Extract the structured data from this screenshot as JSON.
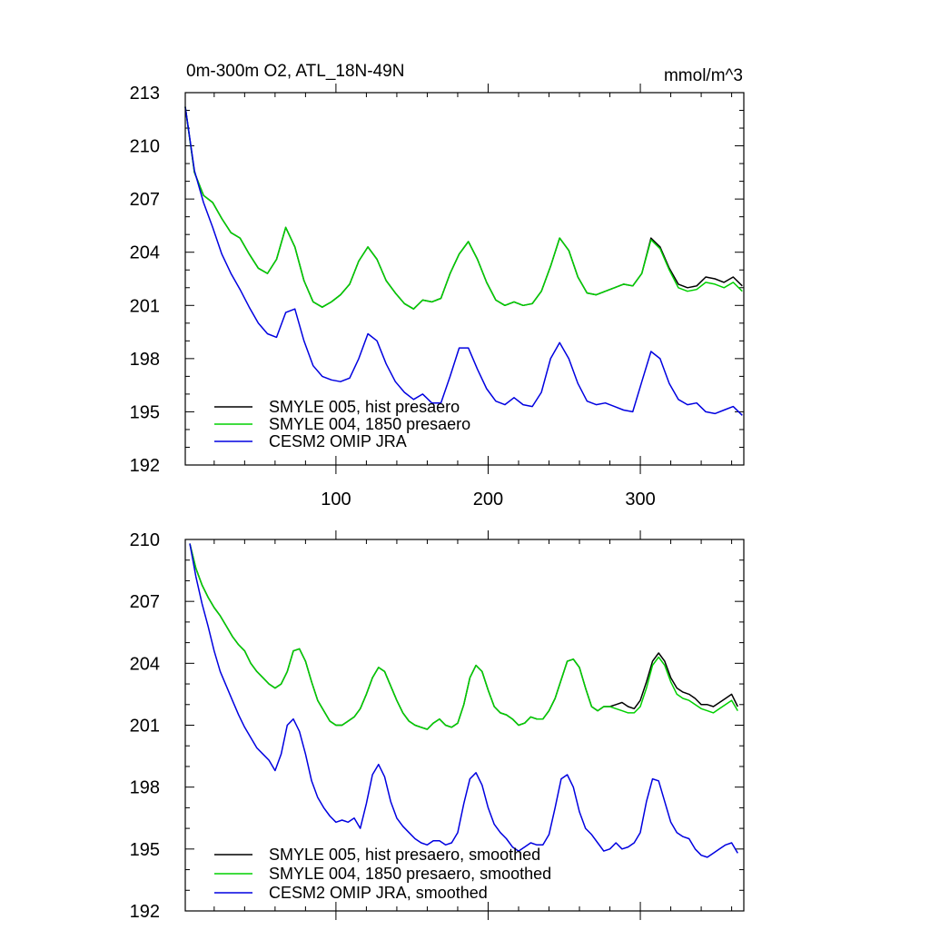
{
  "chart_data": [
    {
      "type": "line",
      "title": "0m-300m O2, ATL_18N-49N",
      "units": "mmol/m^3",
      "x_range": [
        1,
        368
      ],
      "ylim": [
        192,
        213
      ],
      "y_ticks": [
        192,
        195,
        198,
        201,
        204,
        207,
        210,
        213
      ],
      "x_ticks": [
        100,
        200,
        300
      ],
      "x_tick_labels": [
        "100",
        "200",
        "300"
      ],
      "x_tick_labels_position": "bottom",
      "legend_position": "bottom-left",
      "series": [
        {
          "name": "SMYLE 005, hist presaero",
          "color": "#000000",
          "x": [
            1,
            7,
            13,
            19,
            25,
            31,
            37,
            43,
            49,
            55,
            61,
            67,
            73,
            79,
            85,
            91,
            97,
            103,
            109,
            115,
            121,
            127,
            133,
            139,
            145,
            151,
            157,
            163,
            169,
            175,
            181,
            187,
            193,
            199,
            205,
            211,
            217,
            223,
            229,
            235,
            241,
            247,
            253,
            259,
            265,
            271,
            277,
            283,
            289,
            295,
            301,
            307,
            313,
            319,
            325,
            331,
            337,
            343,
            349,
            355,
            361,
            367
          ],
          "values": [
            212.2,
            208.5,
            207.2,
            206.8,
            205.9,
            205.1,
            204.8,
            203.9,
            203.1,
            202.8,
            203.6,
            205.4,
            204.3,
            202.4,
            201.2,
            200.9,
            201.2,
            201.6,
            202.2,
            203.5,
            204.3,
            203.6,
            202.4,
            201.7,
            201.1,
            200.8,
            201.3,
            201.2,
            201.4,
            202.8,
            203.9,
            204.6,
            203.6,
            202.3,
            201.3,
            201.0,
            201.2,
            201.0,
            201.1,
            201.8,
            203.2,
            204.8,
            204.1,
            202.6,
            201.7,
            201.6,
            201.8,
            202.0,
            202.2,
            202.1,
            202.8,
            204.8,
            204.3,
            203.1,
            202.2,
            202.0,
            202.1,
            202.6,
            202.5,
            202.3,
            202.6,
            202.1
          ]
        },
        {
          "name": "SMYLE 004, 1850 presaero",
          "color": "#00d000",
          "x": [
            1,
            7,
            13,
            19,
            25,
            31,
            37,
            43,
            49,
            55,
            61,
            67,
            73,
            79,
            85,
            91,
            97,
            103,
            109,
            115,
            121,
            127,
            133,
            139,
            145,
            151,
            157,
            163,
            169,
            175,
            181,
            187,
            193,
            199,
            205,
            211,
            217,
            223,
            229,
            235,
            241,
            247,
            253,
            259,
            265,
            271,
            277,
            283,
            289,
            295,
            301,
            307,
            313,
            319,
            325,
            331,
            337,
            343,
            349,
            355,
            361,
            367
          ],
          "values": [
            212.2,
            208.5,
            207.2,
            206.8,
            205.9,
            205.1,
            204.8,
            203.9,
            203.1,
            202.8,
            203.6,
            205.4,
            204.3,
            202.4,
            201.2,
            200.9,
            201.2,
            201.6,
            202.2,
            203.5,
            204.3,
            203.6,
            202.4,
            201.7,
            201.1,
            200.8,
            201.3,
            201.2,
            201.4,
            202.8,
            203.9,
            204.6,
            203.6,
            202.3,
            201.3,
            201.0,
            201.2,
            201.0,
            201.1,
            201.8,
            203.2,
            204.8,
            204.1,
            202.6,
            201.7,
            201.6,
            201.8,
            202.0,
            202.2,
            202.1,
            202.8,
            204.7,
            204.2,
            203.0,
            202.0,
            201.8,
            201.9,
            202.3,
            202.2,
            202.0,
            202.3,
            201.8
          ]
        },
        {
          "name": "CESM2 OMIP JRA",
          "color": "#0000e0",
          "x": [
            1,
            7,
            13,
            19,
            25,
            31,
            37,
            43,
            49,
            55,
            61,
            67,
            73,
            79,
            85,
            91,
            97,
            103,
            109,
            115,
            121,
            127,
            133,
            139,
            145,
            151,
            157,
            163,
            169,
            175,
            181,
            187,
            193,
            199,
            205,
            211,
            217,
            223,
            229,
            235,
            241,
            247,
            253,
            259,
            265,
            271,
            277,
            283,
            289,
            295,
            301,
            307,
            313,
            319,
            325,
            331,
            337,
            343,
            349,
            355,
            361,
            367
          ],
          "values": [
            212.2,
            208.6,
            206.8,
            205.4,
            203.9,
            202.8,
            201.9,
            200.9,
            200.0,
            199.4,
            199.2,
            200.6,
            200.8,
            199.0,
            197.6,
            197.0,
            196.8,
            196.7,
            196.9,
            198.0,
            199.4,
            199.0,
            197.7,
            196.7,
            196.1,
            195.7,
            196.0,
            195.5,
            195.5,
            197.0,
            198.6,
            198.6,
            197.4,
            196.3,
            195.6,
            195.4,
            195.8,
            195.4,
            195.3,
            196.1,
            198.0,
            198.9,
            198.0,
            196.6,
            195.6,
            195.4,
            195.5,
            195.3,
            195.1,
            195.0,
            196.7,
            198.4,
            198.0,
            196.6,
            195.7,
            195.4,
            195.5,
            195.0,
            194.9,
            195.1,
            195.3,
            194.8
          ]
        }
      ]
    },
    {
      "type": "line",
      "title": "",
      "units": "",
      "x_range": [
        1,
        368
      ],
      "ylim": [
        192,
        210
      ],
      "y_ticks": [
        192,
        195,
        198,
        201,
        204,
        207,
        210
      ],
      "x_ticks": [
        100,
        200,
        300
      ],
      "x_tick_labels": [],
      "legend_position": "bottom-left",
      "series": [
        {
          "name": "SMYLE 005, hist presaero, smoothed",
          "color": "#000000",
          "x": [
            4,
            8,
            12,
            16,
            20,
            24,
            28,
            32,
            36,
            40,
            44,
            48,
            52,
            56,
            60,
            64,
            68,
            72,
            76,
            80,
            84,
            88,
            92,
            96,
            100,
            104,
            108,
            112,
            116,
            120,
            124,
            128,
            132,
            136,
            140,
            144,
            148,
            152,
            156,
            160,
            164,
            168,
            172,
            176,
            180,
            184,
            188,
            192,
            196,
            200,
            204,
            208,
            212,
            216,
            220,
            224,
            228,
            232,
            236,
            240,
            244,
            248,
            252,
            256,
            260,
            264,
            268,
            272,
            276,
            280,
            284,
            288,
            292,
            296,
            300,
            304,
            308,
            312,
            316,
            320,
            324,
            328,
            332,
            336,
            340,
            344,
            348,
            352,
            356,
            360,
            364
          ],
          "values": [
            209.8,
            208.6,
            207.8,
            207.2,
            206.7,
            206.3,
            205.8,
            205.3,
            204.9,
            204.6,
            204.0,
            203.6,
            203.3,
            203.0,
            202.8,
            203.0,
            203.6,
            204.6,
            204.7,
            204.1,
            203.1,
            202.2,
            201.7,
            201.2,
            201.0,
            201.0,
            201.2,
            201.4,
            201.8,
            202.5,
            203.3,
            203.8,
            203.6,
            202.9,
            202.2,
            201.6,
            201.2,
            201.0,
            200.9,
            200.8,
            201.1,
            201.3,
            201.0,
            200.9,
            201.1,
            202.0,
            203.3,
            203.9,
            203.6,
            202.7,
            201.9,
            201.6,
            201.5,
            201.3,
            201.0,
            201.1,
            201.4,
            201.3,
            201.3,
            201.7,
            202.3,
            203.2,
            204.1,
            204.2,
            203.8,
            202.8,
            201.9,
            201.7,
            201.9,
            201.9,
            202.0,
            202.1,
            201.9,
            201.8,
            202.2,
            203.1,
            204.1,
            204.5,
            204.1,
            203.3,
            202.8,
            202.6,
            202.5,
            202.3,
            202.0,
            202.0,
            201.9,
            202.1,
            202.3,
            202.5,
            201.9
          ]
        },
        {
          "name": "SMYLE 004, 1850 presaero, smoothed",
          "color": "#00d000",
          "x": [
            4,
            8,
            12,
            16,
            20,
            24,
            28,
            32,
            36,
            40,
            44,
            48,
            52,
            56,
            60,
            64,
            68,
            72,
            76,
            80,
            84,
            88,
            92,
            96,
            100,
            104,
            108,
            112,
            116,
            120,
            124,
            128,
            132,
            136,
            140,
            144,
            148,
            152,
            156,
            160,
            164,
            168,
            172,
            176,
            180,
            184,
            188,
            192,
            196,
            200,
            204,
            208,
            212,
            216,
            220,
            224,
            228,
            232,
            236,
            240,
            244,
            248,
            252,
            256,
            260,
            264,
            268,
            272,
            276,
            280,
            284,
            288,
            292,
            296,
            300,
            304,
            308,
            312,
            316,
            320,
            324,
            328,
            332,
            336,
            340,
            344,
            348,
            352,
            356,
            360,
            364
          ],
          "values": [
            209.8,
            208.6,
            207.8,
            207.2,
            206.7,
            206.3,
            205.8,
            205.3,
            204.9,
            204.6,
            204.0,
            203.6,
            203.3,
            203.0,
            202.8,
            203.0,
            203.6,
            204.6,
            204.7,
            204.1,
            203.1,
            202.2,
            201.7,
            201.2,
            201.0,
            201.0,
            201.2,
            201.4,
            201.8,
            202.5,
            203.3,
            203.8,
            203.6,
            202.9,
            202.2,
            201.6,
            201.2,
            201.0,
            200.9,
            200.8,
            201.1,
            201.3,
            201.0,
            200.9,
            201.1,
            202.0,
            203.3,
            203.9,
            203.6,
            202.7,
            201.9,
            201.6,
            201.5,
            201.3,
            201.0,
            201.1,
            201.4,
            201.3,
            201.3,
            201.7,
            202.3,
            203.2,
            204.1,
            204.2,
            203.8,
            202.8,
            201.9,
            201.7,
            201.9,
            201.9,
            201.8,
            201.7,
            201.6,
            201.6,
            201.9,
            202.8,
            203.9,
            204.3,
            203.9,
            203.1,
            202.5,
            202.3,
            202.2,
            202.0,
            201.8,
            201.7,
            201.6,
            201.8,
            202.0,
            202.2,
            201.7
          ]
        },
        {
          "name": "CESM2 OMIP JRA, smoothed",
          "color": "#0000e0",
          "x": [
            4,
            8,
            12,
            16,
            20,
            24,
            28,
            32,
            36,
            40,
            44,
            48,
            52,
            56,
            60,
            64,
            68,
            72,
            76,
            80,
            84,
            88,
            92,
            96,
            100,
            104,
            108,
            112,
            116,
            120,
            124,
            128,
            132,
            136,
            140,
            144,
            148,
            152,
            156,
            160,
            164,
            168,
            172,
            176,
            180,
            184,
            188,
            192,
            196,
            200,
            204,
            208,
            212,
            216,
            220,
            224,
            228,
            232,
            236,
            240,
            244,
            248,
            252,
            256,
            260,
            264,
            268,
            272,
            276,
            280,
            284,
            288,
            292,
            296,
            300,
            304,
            308,
            312,
            316,
            320,
            324,
            328,
            332,
            336,
            340,
            344,
            348,
            352,
            356,
            360,
            364
          ],
          "values": [
            209.8,
            208.2,
            206.9,
            205.8,
            204.6,
            203.6,
            202.9,
            202.2,
            201.5,
            200.9,
            200.4,
            199.9,
            199.6,
            199.3,
            198.8,
            199.6,
            201.0,
            201.3,
            200.7,
            199.6,
            198.3,
            197.5,
            197.0,
            196.6,
            196.3,
            196.4,
            196.3,
            196.5,
            196.0,
            197.2,
            198.6,
            199.1,
            198.5,
            197.3,
            196.5,
            196.1,
            195.8,
            195.5,
            195.3,
            195.2,
            195.4,
            195.4,
            195.2,
            195.3,
            195.8,
            197.2,
            198.4,
            198.7,
            198.1,
            197.0,
            196.2,
            195.8,
            195.5,
            195.1,
            194.9,
            195.1,
            195.3,
            195.2,
            195.2,
            195.7,
            197.0,
            198.4,
            198.6,
            198.0,
            196.8,
            196.0,
            195.7,
            195.3,
            194.9,
            195.0,
            195.3,
            195.0,
            195.1,
            195.3,
            195.8,
            197.3,
            198.4,
            198.3,
            197.3,
            196.3,
            195.8,
            195.6,
            195.5,
            195.0,
            194.7,
            194.6,
            194.8,
            195.0,
            195.2,
            195.3,
            194.8
          ]
        }
      ]
    }
  ]
}
